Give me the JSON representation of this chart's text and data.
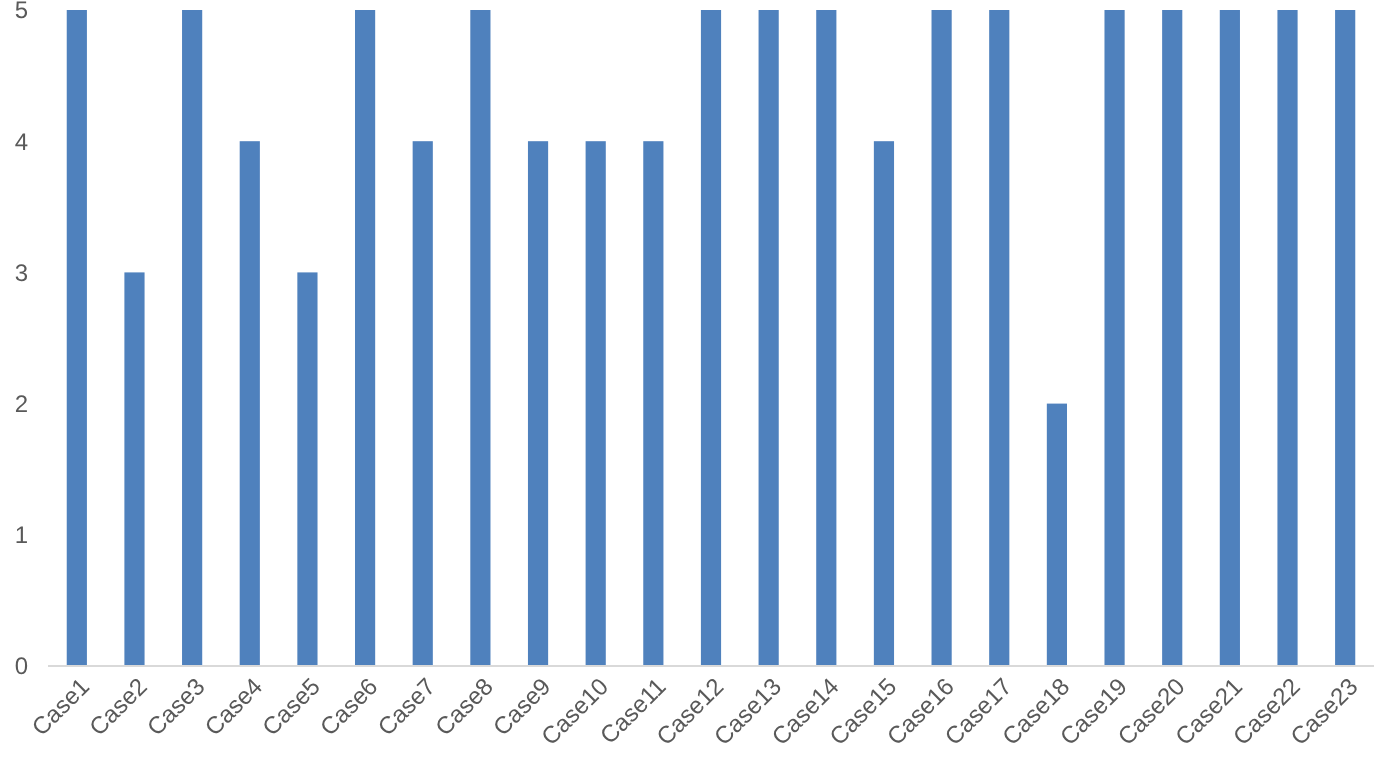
{
  "chart_data": {
    "type": "bar",
    "categories": [
      "Case1",
      "Case2",
      "Case3",
      "Case4",
      "Case5",
      "Case6",
      "Case7",
      "Case8",
      "Case9",
      "Case10",
      "Case11",
      "Case12",
      "Case13",
      "Case14",
      "Case15",
      "Case16",
      "Case17",
      "Case18",
      "Case19",
      "Case20",
      "Case21",
      "Case22",
      "Case23"
    ],
    "values": [
      5,
      3,
      5,
      4,
      3,
      5,
      4,
      5,
      4,
      4,
      4,
      5,
      5,
      5,
      4,
      5,
      5,
      2,
      5,
      5,
      5,
      5,
      5
    ],
    "color": "#4f81bd",
    "ylim": [
      0,
      5
    ],
    "yticks": [
      0,
      1,
      2,
      3,
      4,
      5
    ],
    "grid": false
  }
}
